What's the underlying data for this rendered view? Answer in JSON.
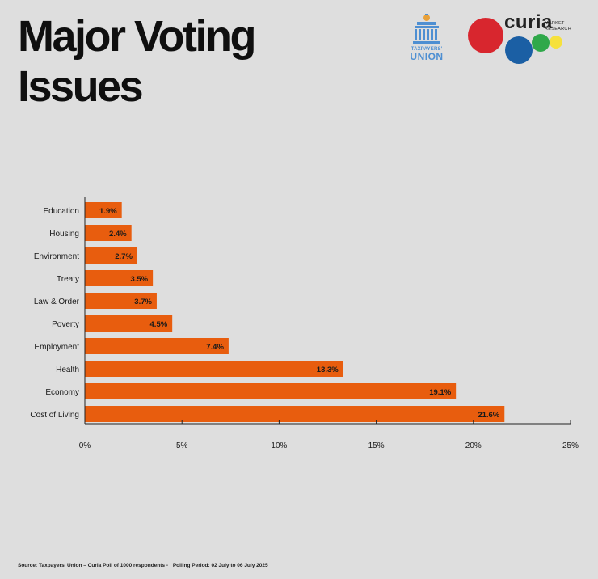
{
  "title": {
    "line1": "Major Voting",
    "line2": "Issues"
  },
  "logos": {
    "taxpayers_union": {
      "small": "TAXPAYERS'",
      "big": "UNION",
      "color": "#4e8fd2"
    },
    "curia": {
      "word": "curia",
      "sub1": "MARKET",
      "sub2": "RESEARCH"
    }
  },
  "colors": {
    "bar": "#e85d0e",
    "axis": "#222222",
    "background": "#dedede"
  },
  "chart_data": {
    "type": "bar",
    "orientation": "horizontal",
    "title": "Major Voting Issues",
    "xlabel": "",
    "ylabel": "",
    "xlim": [
      0,
      25
    ],
    "xticks": [
      0,
      5,
      10,
      15,
      20,
      25
    ],
    "xtick_labels": [
      "0%",
      "5%",
      "10%",
      "15%",
      "20%",
      "25%"
    ],
    "categories": [
      "Education",
      "Housing",
      "Environment",
      "Treaty",
      "Law & Order",
      "Poverty",
      "Employment",
      "Health",
      "Economy",
      "Cost of Living"
    ],
    "values": [
      1.9,
      2.4,
      2.7,
      3.5,
      3.7,
      4.5,
      7.4,
      13.3,
      19.1,
      21.6
    ],
    "value_labels": [
      "1.9%",
      "2.4%",
      "2.7%",
      "3.5%",
      "3.7%",
      "4.5%",
      "7.4%",
      "13.3%",
      "19.1%",
      "21.6%"
    ],
    "grid": false
  },
  "source": {
    "text": "Source: Taxpayers' Union – Curia Poll of 1000 respondents -",
    "period": "Polling Period: 02 July to 06 July 2025"
  }
}
